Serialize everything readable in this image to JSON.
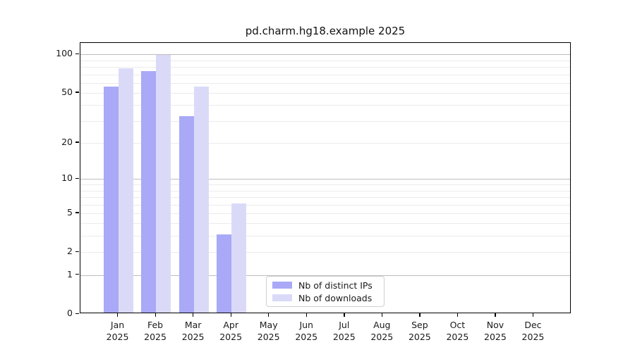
{
  "title": "pd.charm.hg18.example 2025",
  "colors": {
    "ips": "#a9a9f7",
    "downloads": "#dadaf8",
    "grid_major": "#bdbdbd",
    "grid_minor": "#ebebeb",
    "axis": "#000000",
    "legend_border": "#d0d0d0",
    "text": "#1a1a1a"
  },
  "legend": {
    "items": [
      {
        "label": "Nb of distinct IPs",
        "color_key": "ips"
      },
      {
        "label": "Nb of downloads",
        "color_key": "downloads"
      }
    ]
  },
  "chart_data": {
    "type": "bar",
    "title": "pd.charm.hg18.example 2025",
    "categories": [
      "Jan",
      "Feb",
      "Mar",
      "Apr",
      "May",
      "Jun",
      "Jul",
      "Aug",
      "Sep",
      "Oct",
      "Nov",
      "Dec"
    ],
    "year": "2025",
    "series": [
      {
        "name": "Nb of distinct IPs",
        "values": [
          55,
          72,
          32,
          3,
          0,
          0,
          0,
          0,
          0,
          0,
          0,
          0
        ]
      },
      {
        "name": "Nb of downloads",
        "values": [
          76,
          97,
          55,
          6,
          0,
          0,
          0,
          0,
          0,
          0,
          0,
          0
        ]
      }
    ],
    "xlabel": "",
    "ylabel": "",
    "yscale": "log10(1+y)",
    "yticks": [
      0,
      1,
      2,
      5,
      10,
      20,
      50,
      100
    ],
    "ylim": [
      0,
      123
    ],
    "grid": "on",
    "legend_position": "lower-center-inside"
  }
}
